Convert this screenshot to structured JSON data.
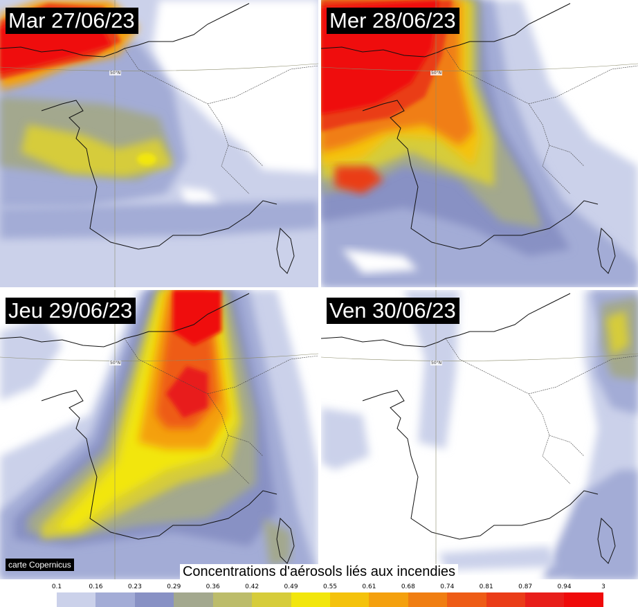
{
  "panels": [
    {
      "date": "Mar 27/06/23",
      "lat_label": "50°N"
    },
    {
      "date": "Mer 28/06/23",
      "lat_label": "50°N"
    },
    {
      "date": "Jeu 29/06/23",
      "lat_label": "50°N"
    },
    {
      "date": "Ven 30/06/23",
      "lat_label": "50°N"
    }
  ],
  "credit": "carte Copernicus",
  "legend": {
    "title": "Concentrations d'aérosols liés aux incendies",
    "ticks": [
      "0.1",
      "0.16",
      "0.23",
      "0.29",
      "0.36",
      "0.42",
      "0.49",
      "0.55",
      "0.61",
      "0.68",
      "0.74",
      "0.81",
      "0.87",
      "0.94",
      "3"
    ],
    "colors": [
      "#cbd1ea",
      "#a3acd6",
      "#8891c4",
      "#a3a88e",
      "#bcbc6a",
      "#d6cc3a",
      "#f2e60c",
      "#f4c20c",
      "#f4a00e",
      "#f07e12",
      "#ee5c16",
      "#ea3c18",
      "#e81e1a",
      "#ef0a0a"
    ]
  }
}
